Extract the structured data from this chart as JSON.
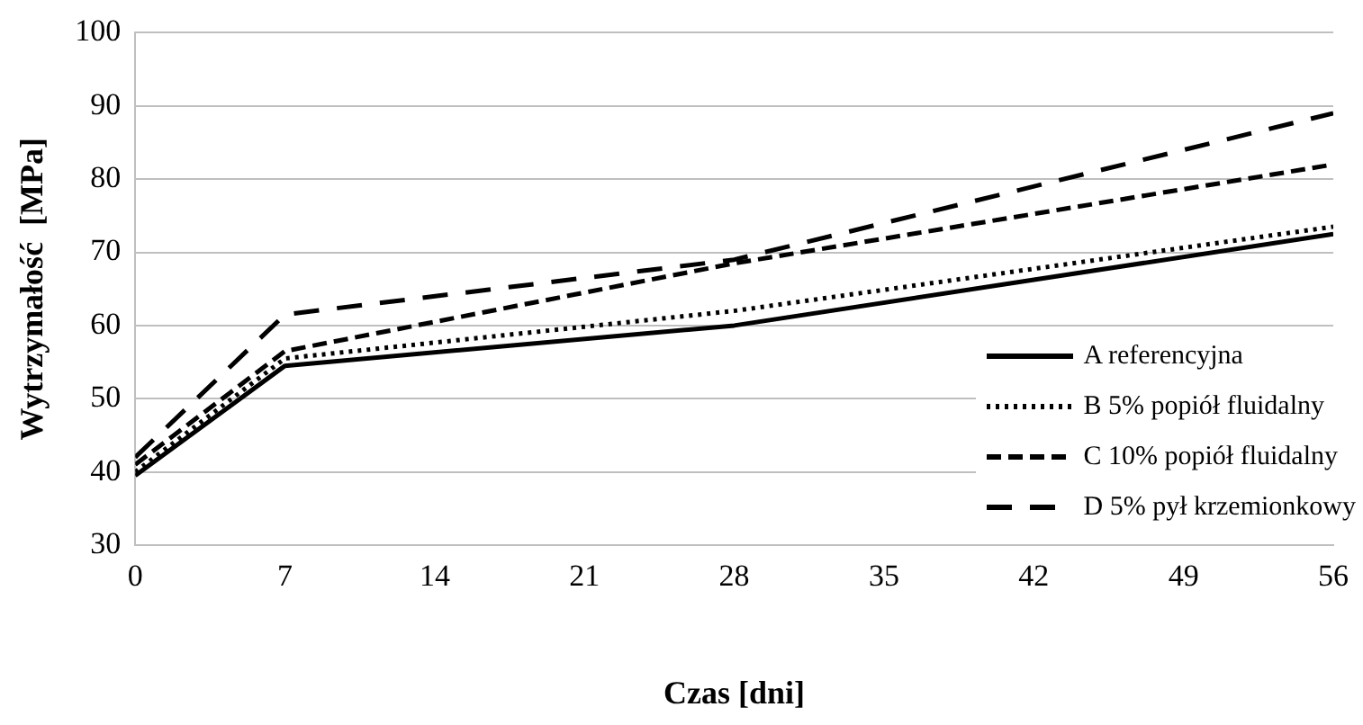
{
  "chart_data": {
    "type": "line",
    "xlabel": "Czas [dni]",
    "ylabel": "Wytrzymałość  [MPa]",
    "xlim": [
      0,
      56
    ],
    "xticks": [
      0,
      7,
      14,
      21,
      28,
      35,
      42,
      49,
      56
    ],
    "ylim": [
      30,
      100
    ],
    "yticks": [
      30,
      40,
      50,
      60,
      70,
      80,
      90,
      100
    ],
    "grid": "y",
    "legend": "right",
    "marker": "none",
    "series": [
      {
        "name": "A referencyjna",
        "color": "#000000",
        "line_style": "solid",
        "x": [
          0,
          7,
          28,
          56
        ],
        "values": [
          39.5,
          54.5,
          60,
          72.5
        ]
      },
      {
        "name": "B 5% popiół fluidalny",
        "color": "#000000",
        "line_style": "dotted",
        "x": [
          0,
          7,
          28,
          56
        ],
        "values": [
          40,
          55.5,
          62,
          73.5
        ]
      },
      {
        "name": "C 10% popiół fluidalny",
        "color": "#000000",
        "line_style": "dashed",
        "x": [
          0,
          7,
          28,
          56
        ],
        "values": [
          41,
          56.5,
          68.5,
          82
        ]
      },
      {
        "name": "D 5% pył krzemionkowy",
        "color": "#000000",
        "line_style": "longdash",
        "x": [
          0,
          7,
          28,
          56
        ],
        "values": [
          42,
          61.5,
          69,
          89
        ]
      }
    ]
  }
}
